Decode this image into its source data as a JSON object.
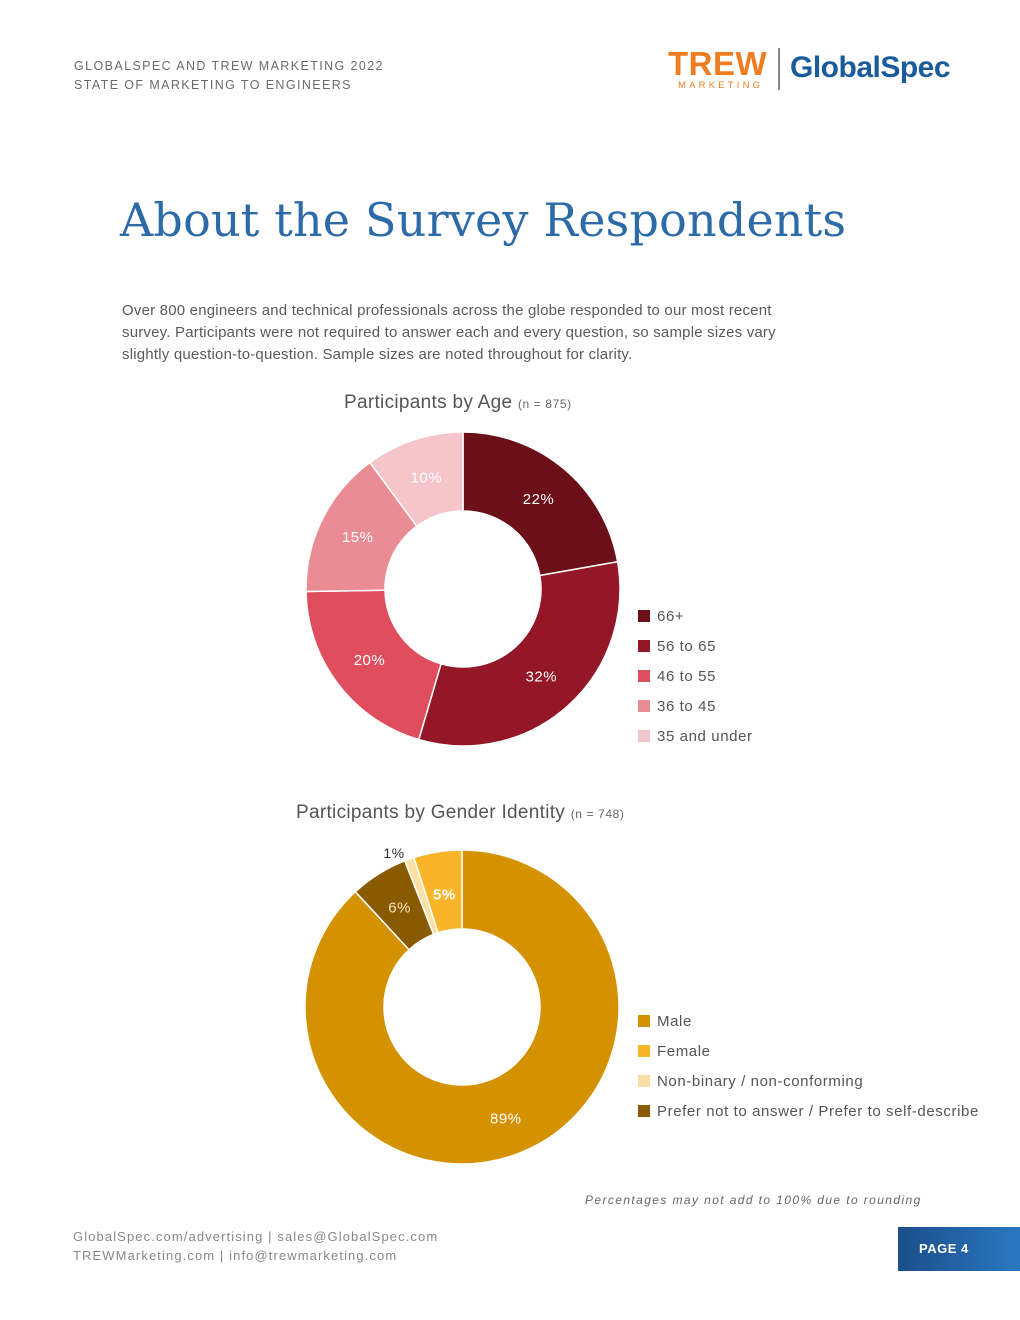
{
  "header": {
    "line1": "GLOBALSPEC AND TREW MARKETING 2022",
    "line2": "STATE OF MARKETING TO ENGINEERS"
  },
  "logos": {
    "trew": "TREW",
    "trew_sub": "MARKETING",
    "globalspec": "GlobalSpec",
    "trew_color": "#ef7d22",
    "globalspec_color": "#1a5b9c"
  },
  "title": "About the Survey Respondents",
  "intro": "Over 800 engineers and technical professionals across the globe responded to our most recent survey.  Participants were not required to answer each and every question, so sample sizes vary slightly question-to-question. Sample sizes are noted throughout for clarity.",
  "chart_data": [
    {
      "type": "pie",
      "title": "Participants by Age",
      "sample": "(n = 875)",
      "series": [
        {
          "label": "66+",
          "value": 22,
          "display": "22%",
          "color": "#6b1018",
          "text_color": "#ffffff"
        },
        {
          "label": "56 to 65",
          "value": 32,
          "display": "32%",
          "color": "#931726",
          "text_color": "#ffffff"
        },
        {
          "label": "46 to 55",
          "value": 20,
          "display": "20%",
          "color": "#e04e5e",
          "text_color": "#ffffff"
        },
        {
          "label": "36 to 45",
          "value": 15,
          "display": "15%",
          "color": "#ea8c94",
          "text_color": "#ffffff"
        },
        {
          "label": "35 and under",
          "value": 10,
          "display": "10%",
          "color": "#f5c5ca",
          "text_color": "#ffffff"
        }
      ],
      "legend_order": [
        0,
        1,
        2,
        3,
        4
      ],
      "legend_position": "right"
    },
    {
      "type": "pie",
      "title": "Participants by Gender Identity",
      "sample": "(n = 748)",
      "series": [
        {
          "label": "Male",
          "value": 89,
          "display": "89%",
          "color": "#d49100",
          "text_color": "#ffffff"
        },
        {
          "label": "Prefer not to answer / Prefer to self-describe",
          "value": 6,
          "display": "6%",
          "color": "#8a5a00",
          "text_color": "#ffffff"
        },
        {
          "label": "Non-binary / non-conforming",
          "value": 1,
          "display": "1%",
          "color": "#fbe0a6",
          "text_color": "#333333"
        },
        {
          "label": "Female",
          "value": 5,
          "display": "5%",
          "color": "#f9b52a",
          "text_color": "#ffffff"
        }
      ],
      "legend_order": [
        0,
        3,
        2,
        1
      ],
      "legend_position": "right"
    }
  ],
  "note": "Percentages may not add to 100% due to rounding",
  "footer": {
    "line1": "GlobalSpec.com/advertising  |  sales@GlobalSpec.com",
    "line2": "TREWMarketing.com  |  info@trewmarketing.com"
  },
  "page_label": "PAGE 4"
}
